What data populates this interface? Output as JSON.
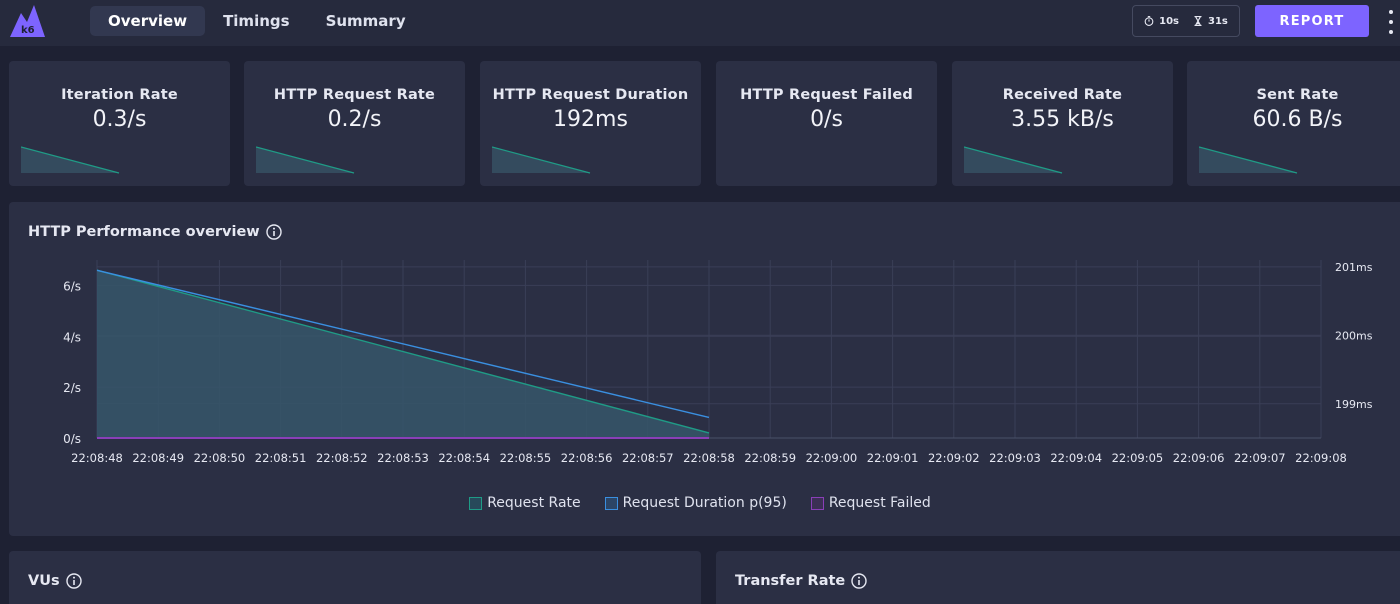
{
  "header": {
    "tabs": [
      {
        "label": "Overview",
        "active": true
      },
      {
        "label": "Timings",
        "active": false
      },
      {
        "label": "Summary",
        "active": false
      }
    ],
    "timer": {
      "period": "10s",
      "elapsed": "31s"
    },
    "report_label": "REPORT",
    "logo_text": "k6"
  },
  "colors": {
    "accent": "#7d64ff",
    "teal": "#1f9b86",
    "blue": "#3a8fe0",
    "purple": "#8a3fb8"
  },
  "stats": [
    {
      "label": "Iteration Rate",
      "value": "0.3/s",
      "sparkline": true
    },
    {
      "label": "HTTP Request Rate",
      "value": "0.2/s",
      "sparkline": true
    },
    {
      "label": "HTTP Request Duration",
      "value": "192ms",
      "sparkline": true
    },
    {
      "label": "HTTP Request Failed",
      "value": "0/s",
      "sparkline": false
    },
    {
      "label": "Received Rate",
      "value": "3.55 kB/s",
      "sparkline": true
    },
    {
      "label": "Sent Rate",
      "value": "60.6 B/s",
      "sparkline": true
    }
  ],
  "performance_panel": {
    "title": "HTTP Performance overview"
  },
  "chart_data": {
    "type": "line",
    "title": "HTTP Performance overview",
    "x": [
      "22:08:48",
      "22:08:49",
      "22:08:50",
      "22:08:51",
      "22:08:52",
      "22:08:53",
      "22:08:54",
      "22:08:55",
      "22:08:56",
      "22:08:57",
      "22:08:58",
      "22:08:59",
      "22:09:00",
      "22:09:01",
      "22:09:02",
      "22:09:03",
      "22:09:04",
      "22:09:05",
      "22:09:06",
      "22:09:07",
      "22:09:08"
    ],
    "y_left_ticks": [
      "0/s",
      "2/s",
      "4/s",
      "6/s"
    ],
    "y_left_lim": [
      0,
      7
    ],
    "y_right_ticks": [
      "199ms",
      "200ms",
      "201ms"
    ],
    "y_right_lim": [
      198.5,
      201.1
    ],
    "series": [
      {
        "name": "Request Rate",
        "axis": "left",
        "color": "#1f9b86",
        "fill": true,
        "points": [
          [
            0,
            6.6
          ],
          [
            10,
            0.2
          ]
        ]
      },
      {
        "name": "Request Duration p(95)",
        "axis": "right",
        "color": "#3a8fe0",
        "fill": false,
        "points": [
          [
            0,
            200.95
          ],
          [
            10,
            198.8
          ]
        ]
      },
      {
        "name": "Request Failed",
        "axis": "left",
        "color": "#8a3fb8",
        "fill": false,
        "points": [
          [
            0,
            0
          ],
          [
            10,
            0
          ]
        ]
      }
    ],
    "grid": true,
    "legend_position": "bottom"
  },
  "panels_bottom": [
    {
      "title": "VUs"
    },
    {
      "title": "Transfer Rate"
    }
  ]
}
